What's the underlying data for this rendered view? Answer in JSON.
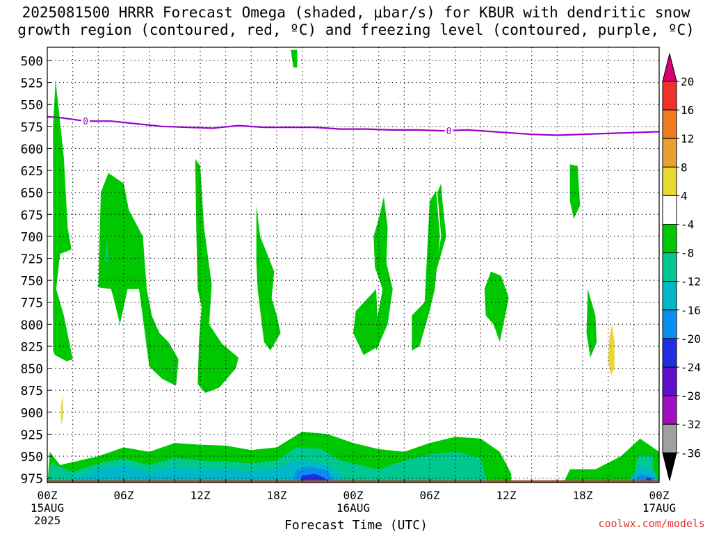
{
  "header": {
    "title_line1": "2025081500 HRRR Forecast Omega (shaded, μbar/s) for KBUR with dendritic snow",
    "title_line2": "growth region (contoured, red, ºC) and freezing level (contoured, purple, ºC)",
    "watermark": "coolwx.com/models"
  },
  "chart_data": {
    "type": "heatmap",
    "title": "2025081500 HRRR Forecast Omega (shaded, μbar/s) for KBUR with dendritic snow growth region (contoured, red, ºC) and freezing level (contoured, purple, ºC)",
    "xlabel": "Forecast Time (UTC)",
    "ylabel": "",
    "x_range_hours": [
      0,
      48
    ],
    "y_range_mb": [
      485,
      980
    ],
    "grid": true,
    "x_ticks": [
      {
        "h": 0,
        "label": "00Z",
        "sub": "15AUG",
        "sub2": "2025"
      },
      {
        "h": 6,
        "label": "06Z",
        "sub": "",
        "sub2": ""
      },
      {
        "h": 12,
        "label": "12Z",
        "sub": "",
        "sub2": ""
      },
      {
        "h": 18,
        "label": "18Z",
        "sub": "",
        "sub2": ""
      },
      {
        "h": 24,
        "label": "00Z",
        "sub": "16AUG",
        "sub2": ""
      },
      {
        "h": 30,
        "label": "06Z",
        "sub": "",
        "sub2": ""
      },
      {
        "h": 36,
        "label": "12Z",
        "sub": "",
        "sub2": ""
      },
      {
        "h": 42,
        "label": "18Z",
        "sub": "",
        "sub2": ""
      },
      {
        "h": 48,
        "label": "00Z",
        "sub": "17AUG",
        "sub2": ""
      }
    ],
    "y_ticks": [
      500,
      525,
      550,
      575,
      600,
      625,
      650,
      675,
      700,
      725,
      750,
      775,
      800,
      825,
      850,
      875,
      900,
      925,
      950,
      975
    ],
    "colorbar": {
      "labels": [
        20,
        16,
        12,
        8,
        4,
        -4,
        -8,
        -12,
        -16,
        -20,
        -24,
        -28,
        -32,
        -36
      ],
      "bins": [
        {
          "color": "#d9006d"
        },
        {
          "color": "#f0302a"
        },
        {
          "color": "#f07a20"
        },
        {
          "color": "#e8a030"
        },
        {
          "color": "#e8d830"
        },
        {
          "color": "#ffffff"
        },
        {
          "color": "#00c800"
        },
        {
          "color": "#00c890"
        },
        {
          "color": "#00b8c8"
        },
        {
          "color": "#0a8ef0"
        },
        {
          "color": "#2030e0"
        },
        {
          "color": "#6010c8"
        },
        {
          "color": "#a010c0"
        },
        {
          "color": "#a0a0a0"
        },
        {
          "color": "#000000"
        }
      ]
    },
    "freezing_level": {
      "color": "#9900cc",
      "label": "0",
      "label_hours": [
        3.0,
        31.5
      ],
      "points_h_mb": [
        [
          0,
          564
        ],
        [
          1,
          565
        ],
        [
          3,
          569
        ],
        [
          5,
          569
        ],
        [
          7,
          572
        ],
        [
          9,
          575
        ],
        [
          11,
          576
        ],
        [
          13,
          577
        ],
        [
          15,
          574
        ],
        [
          17,
          576
        ],
        [
          19,
          576
        ],
        [
          21,
          576
        ],
        [
          23,
          578
        ],
        [
          25,
          578
        ],
        [
          27,
          579
        ],
        [
          29,
          579
        ],
        [
          31,
          580
        ],
        [
          33,
          579
        ],
        [
          34,
          580
        ],
        [
          36,
          582
        ],
        [
          38,
          584
        ],
        [
          40,
          585
        ],
        [
          42,
          584
        ],
        [
          44,
          583
        ],
        [
          46,
          582
        ],
        [
          48,
          581
        ]
      ]
    },
    "omega_regions": [
      {
        "level": -8,
        "color": "#00c800",
        "pts": [
          [
            0.45,
            574
          ],
          [
            0.65,
            522
          ],
          [
            1.3,
            610
          ],
          [
            1.6,
            690
          ],
          [
            1.9,
            715
          ],
          [
            1.0,
            720
          ],
          [
            0.7,
            760
          ],
          [
            1.3,
            790
          ],
          [
            2.0,
            840
          ],
          [
            1.5,
            842
          ],
          [
            0.6,
            835
          ],
          [
            0.45,
            830
          ]
        ]
      },
      {
        "level": -8,
        "color": "#00c800",
        "pts": [
          [
            4.0,
            758
          ],
          [
            4.2,
            650
          ],
          [
            4.8,
            628
          ],
          [
            6.0,
            640
          ],
          [
            6.4,
            670
          ],
          [
            7.5,
            700
          ],
          [
            7.8,
            760
          ],
          [
            8.2,
            790
          ],
          [
            8.8,
            810
          ],
          [
            9.5,
            820
          ],
          [
            10.3,
            840
          ],
          [
            10.1,
            870
          ],
          [
            9.0,
            862
          ],
          [
            8.0,
            848
          ],
          [
            7.2,
            760
          ],
          [
            6.3,
            760
          ],
          [
            5.7,
            800
          ],
          [
            5.2,
            770
          ],
          [
            5.0,
            760
          ]
        ]
      },
      {
        "level": -8,
        "color": "#00c800",
        "pts": [
          [
            11.6,
            612
          ],
          [
            12.0,
            620
          ],
          [
            12.3,
            690
          ],
          [
            12.9,
            755
          ],
          [
            12.7,
            800
          ],
          [
            13.7,
            822
          ],
          [
            15.0,
            838
          ],
          [
            14.8,
            850
          ],
          [
            13.5,
            872
          ],
          [
            12.4,
            878
          ],
          [
            11.8,
            868
          ],
          [
            11.9,
            820
          ],
          [
            12.1,
            780
          ],
          [
            11.8,
            760
          ],
          [
            11.7,
            700
          ]
        ]
      },
      {
        "level": -8,
        "color": "#00c800",
        "pts": [
          [
            19.1,
            488
          ],
          [
            19.6,
            488
          ],
          [
            19.6,
            508
          ],
          [
            19.3,
            508
          ]
        ]
      },
      {
        "level": -8,
        "color": "#00c800",
        "pts": [
          [
            16.4,
            665
          ],
          [
            16.7,
            700
          ],
          [
            17.8,
            740
          ],
          [
            17.6,
            770
          ],
          [
            18.0,
            790
          ],
          [
            18.3,
            810
          ],
          [
            17.5,
            830
          ],
          [
            17.0,
            820
          ],
          [
            16.5,
            760
          ],
          [
            16.4,
            730
          ]
        ]
      },
      {
        "level": -8,
        "color": "#00c800",
        "pts": [
          [
            25.8,
            830
          ],
          [
            25.8,
            800
          ],
          [
            26.3,
            760
          ],
          [
            25.7,
            735
          ],
          [
            25.6,
            700
          ],
          [
            26.0,
            680
          ],
          [
            26.4,
            655
          ],
          [
            26.7,
            690
          ],
          [
            26.6,
            730
          ],
          [
            27.1,
            760
          ],
          [
            26.7,
            800
          ]
        ]
      },
      {
        "level": -8,
        "color": "#00c800",
        "pts": [
          [
            24.2,
            785
          ],
          [
            25.8,
            760
          ],
          [
            26.0,
            825
          ],
          [
            24.8,
            835
          ],
          [
            24.0,
            810
          ]
        ]
      },
      {
        "level": -8,
        "color": "#00c800",
        "pts": [
          [
            29.7,
            780
          ],
          [
            30.5,
            740
          ],
          [
            31.3,
            700
          ],
          [
            31.0,
            660
          ],
          [
            30.9,
            640
          ],
          [
            30.6,
            650
          ],
          [
            30.9,
            700
          ],
          [
            30.3,
            750
          ],
          [
            29.7,
            780
          ]
        ]
      },
      {
        "level": -8,
        "color": "#00c800",
        "pts": [
          [
            28.6,
            790
          ],
          [
            29.6,
            775
          ],
          [
            30.0,
            660
          ],
          [
            30.5,
            648
          ],
          [
            30.8,
            700
          ],
          [
            30.4,
            760
          ],
          [
            29.9,
            790
          ],
          [
            29.2,
            825
          ],
          [
            28.6,
            830
          ]
        ]
      },
      {
        "level": -8,
        "color": "#00c800",
        "pts": [
          [
            34.3,
            760
          ],
          [
            34.8,
            740
          ],
          [
            35.6,
            745
          ],
          [
            36.2,
            770
          ],
          [
            35.5,
            820
          ],
          [
            35.0,
            800
          ],
          [
            34.4,
            790
          ]
        ]
      },
      {
        "level": -8,
        "color": "#00c800",
        "pts": [
          [
            41.0,
            618
          ],
          [
            41.6,
            620
          ],
          [
            41.8,
            665
          ],
          [
            41.3,
            680
          ],
          [
            41.0,
            660
          ]
        ]
      },
      {
        "level": -8,
        "color": "#00c800",
        "pts": [
          [
            42.4,
            760
          ],
          [
            43.0,
            790
          ],
          [
            43.1,
            820
          ],
          [
            42.6,
            838
          ],
          [
            42.3,
            810
          ]
        ]
      },
      {
        "level": -8,
        "color": "#00c800",
        "pts": [
          [
            0,
            985
          ],
          [
            0.2,
            945
          ],
          [
            1.0,
            960
          ],
          [
            4.0,
            950
          ],
          [
            6.0,
            940
          ],
          [
            8.0,
            945
          ],
          [
            10.0,
            935
          ],
          [
            12.0,
            937
          ],
          [
            14.0,
            938
          ],
          [
            16.0,
            943
          ],
          [
            18.0,
            940
          ],
          [
            20.0,
            922
          ],
          [
            22.0,
            925
          ],
          [
            24.0,
            935
          ],
          [
            26.0,
            942
          ],
          [
            28.0,
            945
          ],
          [
            30.0,
            935
          ],
          [
            32.0,
            928
          ],
          [
            34.0,
            930
          ],
          [
            35.5,
            945
          ],
          [
            36.4,
            970
          ],
          [
            36.4,
            980
          ],
          [
            0,
            980
          ]
        ]
      },
      {
        "level": -8,
        "color": "#00c800",
        "pts": [
          [
            40.5,
            980
          ],
          [
            41.0,
            965
          ],
          [
            43.0,
            965
          ],
          [
            45.0,
            950
          ],
          [
            46.5,
            930
          ],
          [
            48.0,
            945
          ],
          [
            48.0,
            980
          ]
        ]
      },
      {
        "level": -12,
        "color": "#00c890",
        "pts": [
          [
            0,
            980
          ],
          [
            0.3,
            958
          ],
          [
            2.0,
            968
          ],
          [
            4.0,
            958
          ],
          [
            6.0,
            953
          ],
          [
            8.0,
            960
          ],
          [
            10.0,
            952
          ],
          [
            12.0,
            955
          ],
          [
            14.0,
            956
          ],
          [
            16.0,
            958
          ],
          [
            18.0,
            955
          ],
          [
            19.5,
            940
          ],
          [
            21.5,
            942
          ],
          [
            23.0,
            955
          ],
          [
            26.0,
            965
          ],
          [
            28.0,
            955
          ],
          [
            30.0,
            948
          ],
          [
            32.0,
            945
          ],
          [
            34.0,
            952
          ],
          [
            34.5,
            980
          ]
        ]
      },
      {
        "level": -12,
        "color": "#00c890",
        "pts": [
          [
            46.0,
            980
          ],
          [
            46.3,
            950
          ],
          [
            47.5,
            950
          ],
          [
            47.5,
            980
          ]
        ]
      },
      {
        "level": -16,
        "color": "#00b8c8",
        "pts": [
          [
            0,
            980
          ],
          [
            2.0,
            975
          ],
          [
            4.0,
            965
          ],
          [
            6.0,
            960
          ],
          [
            8.0,
            968
          ],
          [
            10.0,
            962
          ],
          [
            12.0,
            966
          ],
          [
            14.0,
            965
          ],
          [
            16.0,
            967
          ],
          [
            18.0,
            965
          ],
          [
            19.3,
            955
          ],
          [
            21.5,
            958
          ],
          [
            22.8,
            968
          ],
          [
            23.5,
            980
          ]
        ]
      },
      {
        "level": -16,
        "color": "#00b8c8",
        "pts": [
          [
            45.5,
            980
          ],
          [
            46.5,
            960
          ],
          [
            47.5,
            965
          ],
          [
            48.0,
            980
          ]
        ]
      },
      {
        "level": -20,
        "color": "#0a8ef0",
        "pts": [
          [
            19.3,
            980
          ],
          [
            19.5,
            966
          ],
          [
            20.5,
            962
          ],
          [
            22.0,
            966
          ],
          [
            22.5,
            980
          ]
        ]
      },
      {
        "level": -20,
        "color": "#0a8ef0",
        "pts": [
          [
            46.0,
            980
          ],
          [
            46.5,
            970
          ],
          [
            47.6,
            975
          ],
          [
            47.6,
            980
          ]
        ]
      },
      {
        "level": -24,
        "color": "#2030e0",
        "pts": [
          [
            19.8,
            980
          ],
          [
            20.0,
            972
          ],
          [
            21.0,
            970
          ],
          [
            21.8,
            975
          ],
          [
            22.0,
            980
          ]
        ]
      },
      {
        "level": -24,
        "color": "#2030e0",
        "pts": [
          [
            46.8,
            980
          ],
          [
            47.1,
            974
          ],
          [
            47.6,
            978
          ],
          [
            47.6,
            980
          ]
        ]
      },
      {
        "level": -12,
        "color": "#00c890",
        "pts": [
          [
            4.5,
            728
          ],
          [
            4.7,
            705
          ],
          [
            4.8,
            728
          ]
        ]
      },
      {
        "level": 4,
        "color": "#e8d830",
        "pts": [
          [
            1.05,
            895
          ],
          [
            1.2,
            880
          ],
          [
            1.25,
            905
          ],
          [
            1.1,
            915
          ]
        ]
      },
      {
        "level": 4,
        "color": "#e8d830",
        "pts": [
          [
            44.0,
            840
          ],
          [
            44.1,
            815
          ],
          [
            44.3,
            800
          ],
          [
            44.5,
            820
          ],
          [
            44.5,
            850
          ],
          [
            44.2,
            858
          ]
        ]
      }
    ],
    "ground": {
      "color": "#a0522d",
      "top_mb": 975
    }
  },
  "xlabel": "Forecast Time (UTC)"
}
